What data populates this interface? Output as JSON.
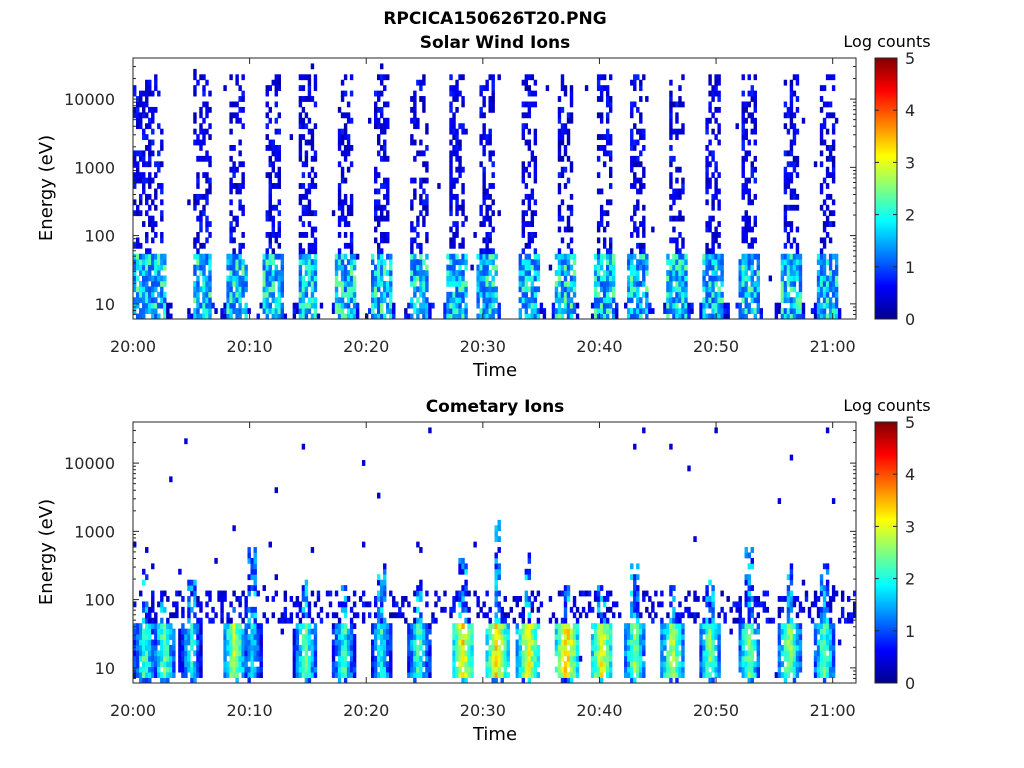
{
  "figure_title": "RPCICA150626T20.PNG",
  "chart_data": [
    {
      "type": "heatmap",
      "title": "Solar Wind Ions",
      "xlabel": "Time",
      "ylabel": "Energy (eV)",
      "y_scale": "log",
      "y_ticks": [
        10,
        100,
        1000,
        10000
      ],
      "y_tick_labels": [
        "10",
        "100",
        "1000",
        "10000"
      ],
      "ylim": [
        6,
        40000
      ],
      "x_ticks": [
        "20:00",
        "20:10",
        "20:20",
        "20:30",
        "20:40",
        "20:50",
        "21:00"
      ],
      "xlim": [
        "20:00",
        "21:02"
      ],
      "colorbar_label": "Log counts",
      "colorbar_ticks": [
        0,
        1,
        2,
        3,
        4,
        5
      ],
      "clim": [
        0,
        5
      ],
      "colormap": "jet",
      "burst_times_min": [
        0.6,
        2.0,
        5.9,
        8.9,
        12.0,
        15.0,
        18.2,
        21.3,
        24.5,
        27.8,
        30.4,
        34.0,
        37.1,
        40.4,
        43.3,
        46.7,
        49.8,
        52.8,
        56.4,
        59.5
      ],
      "low_energy_band_ev": [
        10,
        40
      ],
      "low_energy_band_log_counts": [
        1.0,
        2.5
      ],
      "high_energy_band_ev": [
        200,
        20000
      ],
      "high_energy_band_log_counts": [
        0.2,
        0.8
      ]
    },
    {
      "type": "heatmap",
      "title": "Cometary Ions",
      "xlabel": "Time",
      "ylabel": "Energy (eV)",
      "y_scale": "log",
      "y_ticks": [
        10,
        100,
        1000,
        10000
      ],
      "y_tick_labels": [
        "10",
        "100",
        "1000",
        "10000"
      ],
      "ylim": [
        6,
        40000
      ],
      "x_ticks": [
        "20:00",
        "20:10",
        "20:20",
        "20:30",
        "20:40",
        "20:50",
        "21:00"
      ],
      "xlim": [
        "20:00",
        "21:02"
      ],
      "colorbar_label": "Log counts",
      "colorbar_ticks": [
        0,
        1,
        2,
        3,
        4,
        5
      ],
      "clim": [
        0,
        5
      ],
      "colormap": "jet",
      "burst_times_min": [
        1.0,
        2.7,
        5.0,
        8.7,
        10.2,
        14.8,
        18.1,
        21.3,
        24.5,
        28.3,
        31.2,
        33.9,
        37.2,
        40.2,
        43.0,
        46.3,
        49.5,
        52.8,
        56.3,
        59.3
      ],
      "peak_log_counts": [
        2.7,
        2.8,
        2.4,
        3.2,
        2.2,
        2.8,
        2.6,
        2.4,
        2.7,
        3.6,
        3.7,
        3.5,
        3.8,
        3.5,
        2.9,
        3.2,
        2.9,
        2.9,
        3.1,
        2.8
      ],
      "core_energy_band_ev": [
        10,
        40
      ],
      "spike_max_energy_ev": [
        300,
        100,
        200,
        100,
        600,
        200,
        150,
        350,
        200,
        400,
        1500,
        500,
        200,
        150,
        350,
        150,
        200,
        600,
        350,
        350
      ]
    }
  ]
}
